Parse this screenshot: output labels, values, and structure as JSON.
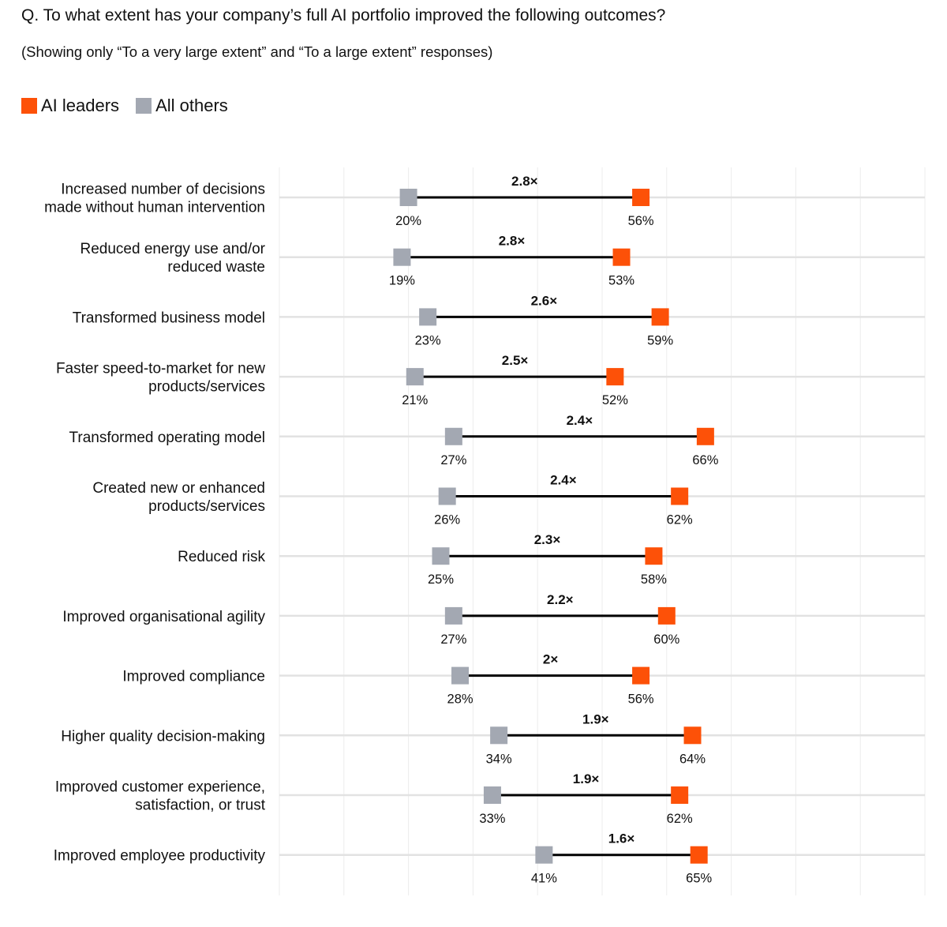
{
  "chart_data": {
    "type": "dumbbell",
    "title": "Q. To what extent has your company’s full AI portfolio improved the following outcomes?",
    "subtitle": "(Showing only “To a very large extent” and “To a large extent” responses)",
    "xlim": [
      0,
      100
    ],
    "unit": "%",
    "grid": true,
    "legend_position": "top-left",
    "colors": {
      "ai_leaders": "#FD5108",
      "all_others": "#A3A8B2"
    },
    "series": [
      {
        "name": "AI leaders",
        "key": "ai_leaders",
        "values": [
          56,
          53,
          59,
          52,
          66,
          62,
          58,
          60,
          56,
          64,
          62,
          65
        ]
      },
      {
        "name": "All others",
        "key": "all_others",
        "values": [
          20,
          19,
          23,
          21,
          27,
          26,
          25,
          27,
          28,
          34,
          33,
          41
        ]
      }
    ],
    "categories": [
      [
        "Increased number of decisions",
        "made without human intervention"
      ],
      [
        "Reduced energy use and/or",
        "reduced waste"
      ],
      [
        "Transformed business model"
      ],
      [
        "Faster speed-to-market for new",
        "products/services"
      ],
      [
        "Transformed operating model"
      ],
      [
        "Created new or enhanced",
        "products/services"
      ],
      [
        "Reduced risk"
      ],
      [
        "Improved organisational agility"
      ],
      [
        "Improved compliance"
      ],
      [
        "Higher quality decision-making"
      ],
      [
        "Improved customer experience,",
        "satisfaction, or trust"
      ],
      [
        "Improved employee productivity"
      ]
    ],
    "multipliers": [
      "2.8×",
      "2.8×",
      "2.6×",
      "2.5×",
      "2.4×",
      "2.4×",
      "2.3×",
      "2.2×",
      "2×",
      "1.9×",
      "1.9×",
      "1.6×"
    ]
  }
}
